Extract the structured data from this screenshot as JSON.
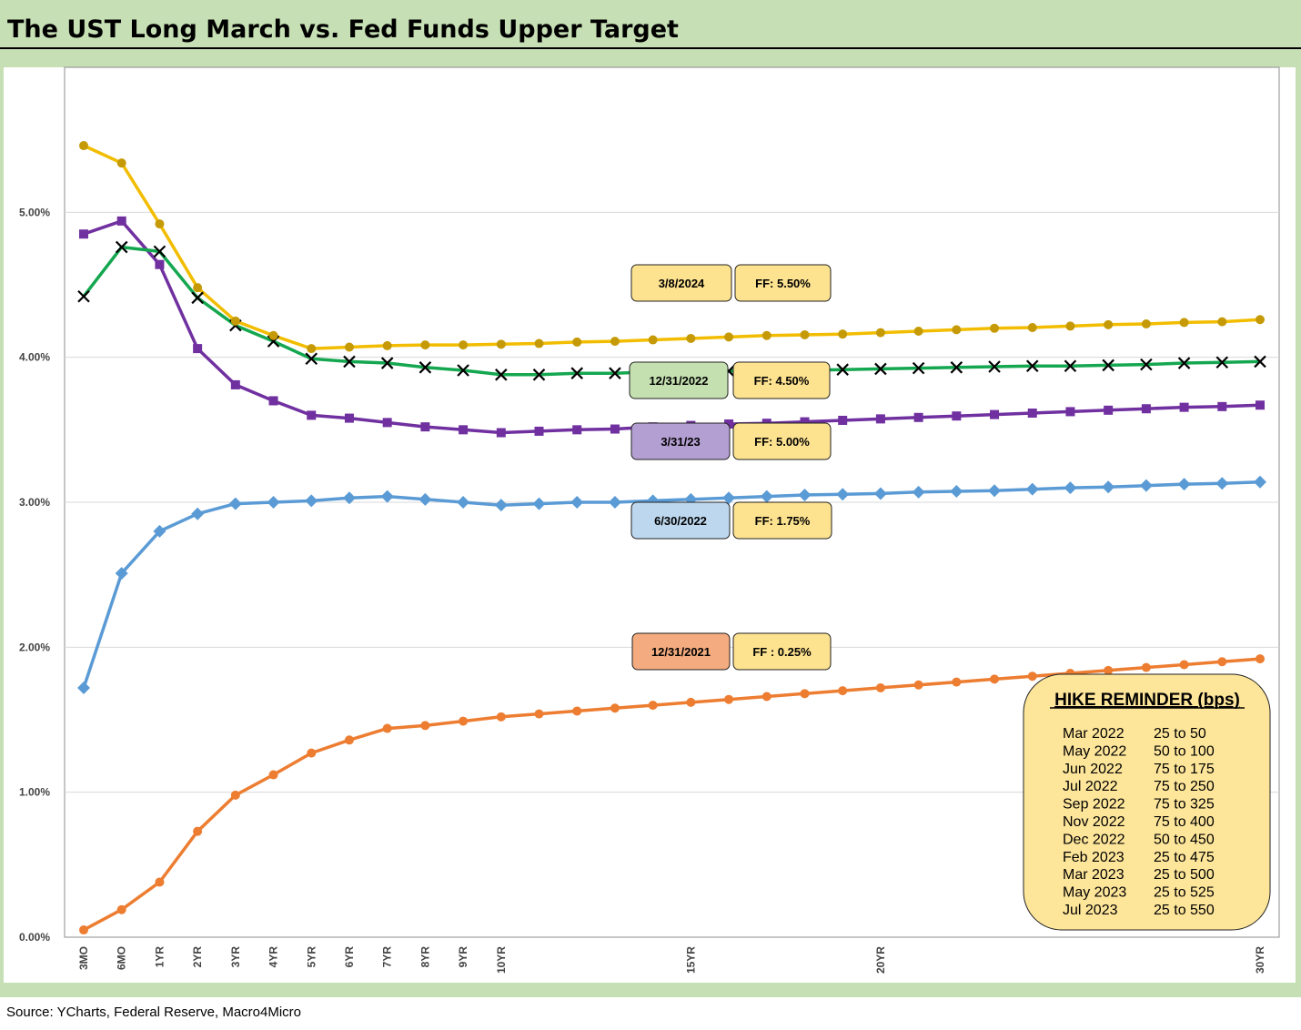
{
  "title": "The UST Long March vs. Fed Funds Upper Target",
  "source": "Source: YCharts, Federal Reserve, Macro4Micro",
  "chart_data": {
    "type": "line",
    "x": [
      "3MO",
      "6MO",
      "1YR",
      "2YR",
      "3YR",
      "4YR",
      "5YR",
      "6YR",
      "7YR",
      "8YR",
      "9YR",
      "10YR",
      "11YR",
      "12YR",
      "13YR",
      "14YR",
      "15YR",
      "16YR",
      "17YR",
      "18YR",
      "19YR",
      "20YR",
      "21YR",
      "22YR",
      "23YR",
      "24YR",
      "25YR",
      "26YR",
      "27YR",
      "28YR",
      "29YR",
      "30YR"
    ],
    "x_tick_labels": [
      "3MO",
      "6MO",
      "1YR",
      "2YR",
      "3YR",
      "4YR",
      "5YR",
      "6YR",
      "7YR",
      "8YR",
      "9YR",
      "10YR",
      "",
      "",
      "",
      "",
      "15YR",
      "",
      "",
      "",
      "",
      "20YR",
      "",
      "",
      "",
      "",
      "",
      "",
      "",
      "",
      "",
      "30YR"
    ],
    "y_ticks": [
      "0.00%",
      "1.00%",
      "2.00%",
      "3.00%",
      "4.00%",
      "5.00%"
    ],
    "ylim": [
      0,
      6
    ],
    "grid": true,
    "series": [
      {
        "label": "3/8/2024",
        "ff": "FF: 5.50%",
        "color": "#f2bd00",
        "marker_color": "#c59a06",
        "marker": "circle",
        "values": [
          5.46,
          5.34,
          4.92,
          4.48,
          4.25,
          4.15,
          4.06,
          4.07,
          4.08,
          4.085,
          4.085,
          4.09,
          4.095,
          4.105,
          4.11,
          4.12,
          4.13,
          4.14,
          4.15,
          4.155,
          4.16,
          4.17,
          4.18,
          4.19,
          4.2,
          4.205,
          4.215,
          4.225,
          4.23,
          4.24,
          4.245,
          4.26
        ]
      },
      {
        "label": "12/31/2022",
        "ff": "FF: 4.50%",
        "color": "#14a750",
        "marker_color": "#000000",
        "marker": "x",
        "values": [
          4.42,
          4.76,
          4.73,
          4.41,
          4.22,
          4.11,
          3.99,
          3.97,
          3.96,
          3.93,
          3.91,
          3.88,
          3.88,
          3.89,
          3.89,
          3.9,
          3.9,
          3.905,
          3.91,
          3.91,
          3.915,
          3.92,
          3.925,
          3.93,
          3.935,
          3.94,
          3.94,
          3.945,
          3.95,
          3.96,
          3.965,
          3.97
        ]
      },
      {
        "label": "3/31/23",
        "ff": "FF: 5.00%",
        "color": "#7030a0",
        "marker_color": "#7030a0",
        "marker": "square",
        "values": [
          4.85,
          4.94,
          4.64,
          4.06,
          3.81,
          3.7,
          3.6,
          3.58,
          3.55,
          3.52,
          3.5,
          3.48,
          3.49,
          3.5,
          3.505,
          3.52,
          3.53,
          3.54,
          3.545,
          3.555,
          3.565,
          3.575,
          3.585,
          3.595,
          3.605,
          3.615,
          3.625,
          3.635,
          3.645,
          3.655,
          3.66,
          3.67
        ]
      },
      {
        "label": "6/30/2022",
        "ff": "FF: 1.75%",
        "color": "#5b9bd5",
        "marker_color": "#5b9bd5",
        "marker": "diamond",
        "values": [
          1.72,
          2.51,
          2.8,
          2.92,
          2.99,
          3.0,
          3.01,
          3.03,
          3.04,
          3.02,
          3.0,
          2.98,
          2.99,
          3.0,
          3.0,
          3.01,
          3.02,
          3.03,
          3.04,
          3.05,
          3.055,
          3.06,
          3.07,
          3.075,
          3.08,
          3.09,
          3.1,
          3.105,
          3.115,
          3.125,
          3.13,
          3.14
        ]
      },
      {
        "label": "12/31/2021",
        "ff": "FF : 0.25%",
        "color": "#ed7d31",
        "marker_color": "#ed7d31",
        "marker": "circle",
        "values": [
          0.05,
          0.19,
          0.38,
          0.73,
          0.98,
          1.12,
          1.27,
          1.36,
          1.44,
          1.46,
          1.49,
          1.52,
          1.54,
          1.56,
          1.58,
          1.6,
          1.62,
          1.64,
          1.66,
          1.68,
          1.7,
          1.72,
          1.74,
          1.76,
          1.78,
          1.8,
          1.82,
          1.84,
          1.86,
          1.88,
          1.9,
          1.92
        ]
      }
    ],
    "label_colors": [
      "#fde28f",
      "#c4e0b0",
      "#b49fd3",
      "#bdd7ee",
      "#f3ab7f"
    ],
    "ff_color": "#fde28f"
  },
  "hike_reminder": {
    "title": "HIKE REMINDER (bps)",
    "rows": [
      {
        "date": "Mar 2022",
        "value": "25 to 50"
      },
      {
        "date": "May 2022",
        "value": "50 to 100"
      },
      {
        "date": "Jun 2022",
        "value": "75 to 175"
      },
      {
        "date": "Jul 2022",
        "value": "75 to 250"
      },
      {
        "date": "Sep 2022",
        "value": "75 to 325"
      },
      {
        "date": "Nov 2022",
        "value": "75 to 400"
      },
      {
        "date": "Dec 2022",
        "value": "50 to 450"
      },
      {
        "date": "Feb 2023",
        "value": "25 to 475"
      },
      {
        "date": "Mar 2023",
        "value": "25 to 500"
      },
      {
        "date": "May 2023",
        "value": "25 to 525"
      },
      {
        "date": "Jul 2023",
        "value": "25 to 550"
      }
    ]
  }
}
